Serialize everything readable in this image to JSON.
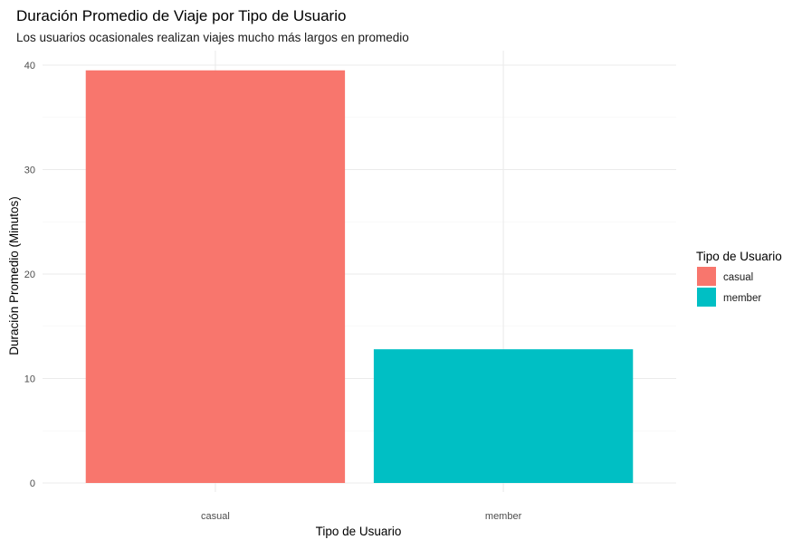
{
  "chart_data": {
    "type": "bar",
    "title": "Duración Promedio de Viaje por Tipo de Usuario",
    "subtitle": "Los usuarios ocasionales realizan viajes mucho más largos en promedio",
    "xlabel": "Tipo de Usuario",
    "ylabel": "Duración Promedio (Minutos)",
    "categories": [
      "casual",
      "member"
    ],
    "values": [
      39.5,
      12.8
    ],
    "colors": [
      "#F8766D",
      "#00BFC4"
    ],
    "ylim": [
      0,
      40
    ],
    "yticks": [
      0,
      10,
      20,
      30,
      40
    ],
    "grid": true,
    "legend": {
      "title": "Tipo de Usuario",
      "position": "right",
      "entries": [
        {
          "label": "casual",
          "color": "#F8766D"
        },
        {
          "label": "member",
          "color": "#00BFC4"
        }
      ]
    }
  }
}
